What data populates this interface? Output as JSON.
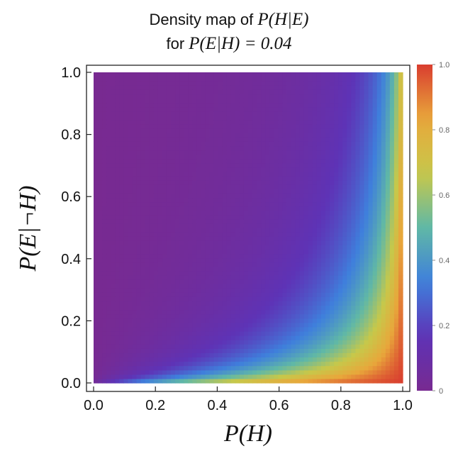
{
  "chart_data": {
    "type": "heatmap",
    "title_line1_prefix": "Density map of ",
    "title_line1_math": "P(H|E)",
    "title_line2_prefix": "for ",
    "title_line2_math": "P(E|H) = 0.04",
    "xlabel": "P(H)",
    "ylabel": "P(E|¬H)",
    "x_ticks": [
      "0.0",
      "0.2",
      "0.4",
      "0.6",
      "0.8",
      "1.0"
    ],
    "y_ticks": [
      "0.0",
      "0.2",
      "0.4",
      "0.6",
      "0.8",
      "1.0"
    ],
    "xlim": [
      0,
      1
    ],
    "ylim": [
      0,
      1
    ],
    "colorbar_ticks": [
      "0",
      "0.2",
      "0.4",
      "0.6",
      "0.8",
      "1.0"
    ],
    "colorbar_range": [
      0,
      1
    ],
    "colormap": "rainbow",
    "colormap_stops": [
      "#782a91",
      "#5e33b6",
      "#3f7fdc",
      "#60b8a6",
      "#c7c84a",
      "#e8a73b",
      "#d93d2f"
    ],
    "function": "P(H|E) = 0.04*P(H) / (0.04*P(H) + P(E|¬H)*(1 - P(H)))",
    "likelihood_P_E_given_H": 0.04
  }
}
